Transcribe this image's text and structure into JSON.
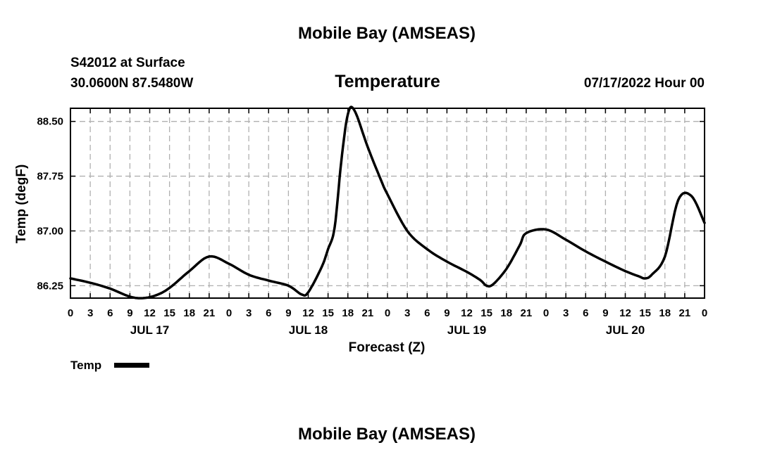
{
  "header": {
    "title_top": "Mobile Bay (AMSEAS)",
    "station": "S42012 at Surface",
    "coords": "30.0600N  87.5480W",
    "panel_title": "Temperature",
    "run_time": "07/17/2022 Hour 00",
    "title_bottom": "Mobile Bay (AMSEAS)"
  },
  "legend": {
    "label": "Temp"
  },
  "chart_data": {
    "type": "line",
    "title": "Temperature",
    "xlabel": "Forecast (Z)",
    "ylabel": "Temp (degF)",
    "x_unit": "forecast hour from 07/17/2022 00Z",
    "xlim": [
      0,
      96
    ],
    "ylim": [
      86.08,
      88.68
    ],
    "grid": true,
    "legend_position": "bottom-left",
    "x_tick_labels": [
      "0",
      "3",
      "6",
      "9",
      "12",
      "15",
      "18",
      "21",
      "0",
      "3",
      "6",
      "9",
      "12",
      "15",
      "18",
      "21",
      "0",
      "3",
      "6",
      "9",
      "12",
      "15",
      "18",
      "21",
      "0",
      "3",
      "6",
      "9",
      "12",
      "15",
      "18",
      "21",
      "0"
    ],
    "day_labels": [
      "JUL 17",
      "JUL 18",
      "JUL 19",
      "JUL 20"
    ],
    "y_ticks": [
      "86.25",
      "87.00",
      "87.75",
      "88.50"
    ],
    "series": [
      {
        "name": "Temp",
        "color": "#000000",
        "x": [
          0,
          3,
          6,
          9,
          11,
          13,
          15,
          18,
          21,
          24,
          27,
          30,
          33,
          35,
          36,
          38,
          39,
          40,
          41,
          42,
          43,
          45,
          47,
          48,
          51,
          54,
          57,
          60,
          62,
          63,
          64,
          66,
          68,
          69,
          72,
          75,
          78,
          81,
          84,
          86,
          87,
          88,
          90,
          92,
          94,
          96
        ],
        "y": [
          86.35,
          86.29,
          86.21,
          86.1,
          86.08,
          86.12,
          86.22,
          86.45,
          86.65,
          86.55,
          86.4,
          86.32,
          86.25,
          86.13,
          86.16,
          86.5,
          86.75,
          87.05,
          87.95,
          88.6,
          88.65,
          88.15,
          87.7,
          87.5,
          87.0,
          86.75,
          86.58,
          86.44,
          86.33,
          86.25,
          86.27,
          86.48,
          86.8,
          86.97,
          87.02,
          86.88,
          86.72,
          86.58,
          86.45,
          86.38,
          86.35,
          86.4,
          86.65,
          87.42,
          87.48,
          87.11
        ]
      }
    ]
  }
}
